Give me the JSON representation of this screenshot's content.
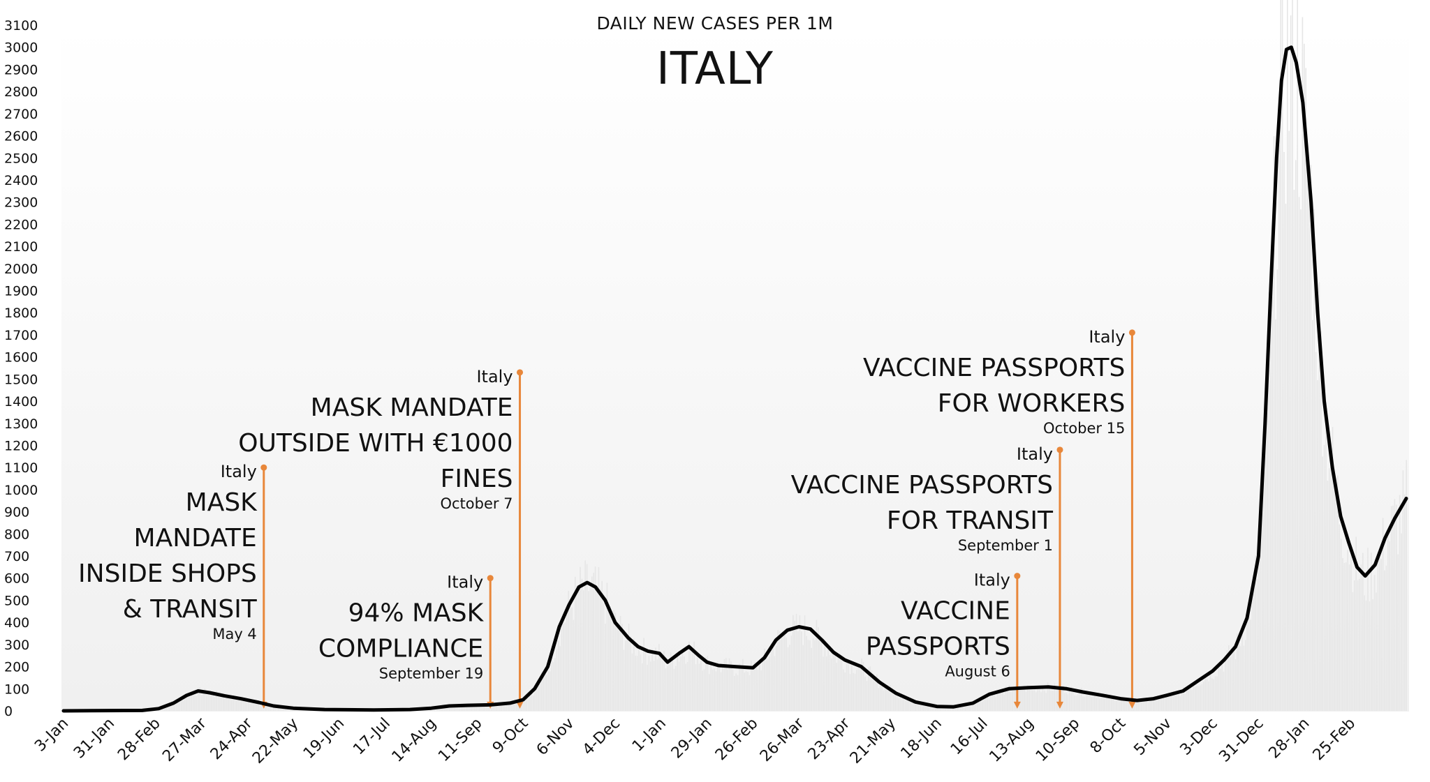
{
  "chart_data": {
    "type": "line",
    "title": "ITALY",
    "subtitle": "DAILY NEW CASES PER 1M",
    "xlabel": "",
    "ylabel": "",
    "ylim": [
      0,
      3100
    ],
    "yticks": [
      0,
      100,
      200,
      300,
      400,
      500,
      600,
      700,
      800,
      900,
      1000,
      1100,
      1200,
      1300,
      1400,
      1500,
      1600,
      1700,
      1800,
      1900,
      2000,
      2100,
      2200,
      2300,
      2400,
      2500,
      2600,
      2700,
      2800,
      2900,
      3000,
      3100
    ],
    "x_start": "2020-01-03",
    "x_end": "2022-03-31",
    "xticks": [
      {
        "date": "2020-01-03",
        "label": "3-Jan"
      },
      {
        "date": "2020-01-31",
        "label": "31-Jan"
      },
      {
        "date": "2020-02-28",
        "label": "28-Feb"
      },
      {
        "date": "2020-03-27",
        "label": "27-Mar"
      },
      {
        "date": "2020-04-24",
        "label": "24-Apr"
      },
      {
        "date": "2020-05-22",
        "label": "22-May"
      },
      {
        "date": "2020-06-19",
        "label": "19-Jun"
      },
      {
        "date": "2020-07-17",
        "label": "17-Jul"
      },
      {
        "date": "2020-08-14",
        "label": "14-Aug"
      },
      {
        "date": "2020-09-11",
        "label": "11-Sep"
      },
      {
        "date": "2020-10-09",
        "label": "9-Oct"
      },
      {
        "date": "2020-11-06",
        "label": "6-Nov"
      },
      {
        "date": "2020-12-04",
        "label": "4-Dec"
      },
      {
        "date": "2021-01-01",
        "label": "1-Jan"
      },
      {
        "date": "2021-01-29",
        "label": "29-Jan"
      },
      {
        "date": "2021-02-26",
        "label": "26-Feb"
      },
      {
        "date": "2021-03-26",
        "label": "26-Mar"
      },
      {
        "date": "2021-04-23",
        "label": "23-Apr"
      },
      {
        "date": "2021-05-21",
        "label": "21-May"
      },
      {
        "date": "2021-06-18",
        "label": "18-Jun"
      },
      {
        "date": "2021-07-16",
        "label": "16-Jul"
      },
      {
        "date": "2021-08-13",
        "label": "13-Aug"
      },
      {
        "date": "2021-09-10",
        "label": "10-Sep"
      },
      {
        "date": "2021-10-08",
        "label": "8-Oct"
      },
      {
        "date": "2021-11-05",
        "label": "5-Nov"
      },
      {
        "date": "2021-12-03",
        "label": "3-Dec"
      },
      {
        "date": "2021-12-31",
        "label": "31-Dec"
      },
      {
        "date": "2022-01-28",
        "label": "28-Jan"
      },
      {
        "date": "2022-02-25",
        "label": "25-Feb"
      }
    ],
    "grid": false,
    "legend": "none",
    "series": [
      {
        "color": "#000000",
        "points": [
          [
            "2020-01-03",
            0
          ],
          [
            "2020-02-20",
            2
          ],
          [
            "2020-03-01",
            10
          ],
          [
            "2020-03-10",
            35
          ],
          [
            "2020-03-18",
            70
          ],
          [
            "2020-03-25",
            90
          ],
          [
            "2020-04-01",
            82
          ],
          [
            "2020-04-10",
            68
          ],
          [
            "2020-04-20",
            55
          ],
          [
            "2020-05-01",
            38
          ],
          [
            "2020-05-10",
            22
          ],
          [
            "2020-05-22",
            12
          ],
          [
            "2020-06-10",
            6
          ],
          [
            "2020-07-10",
            4
          ],
          [
            "2020-08-01",
            6
          ],
          [
            "2020-08-14",
            12
          ],
          [
            "2020-08-25",
            22
          ],
          [
            "2020-09-05",
            25
          ],
          [
            "2020-09-19",
            27
          ],
          [
            "2020-10-01",
            35
          ],
          [
            "2020-10-09",
            50
          ],
          [
            "2020-10-16",
            100
          ],
          [
            "2020-10-24",
            200
          ],
          [
            "2020-10-31",
            380
          ],
          [
            "2020-11-06",
            480
          ],
          [
            "2020-11-12",
            560
          ],
          [
            "2020-11-17",
            580
          ],
          [
            "2020-11-22",
            560
          ],
          [
            "2020-11-28",
            500
          ],
          [
            "2020-12-04",
            400
          ],
          [
            "2020-12-12",
            330
          ],
          [
            "2020-12-18",
            290
          ],
          [
            "2020-12-24",
            270
          ],
          [
            "2020-12-31",
            260
          ],
          [
            "2021-01-05",
            220
          ],
          [
            "2021-01-12",
            260
          ],
          [
            "2021-01-18",
            290
          ],
          [
            "2021-01-24",
            250
          ],
          [
            "2021-01-29",
            220
          ],
          [
            "2021-02-05",
            205
          ],
          [
            "2021-02-15",
            200
          ],
          [
            "2021-02-26",
            195
          ],
          [
            "2021-03-05",
            240
          ],
          [
            "2021-03-12",
            320
          ],
          [
            "2021-03-19",
            365
          ],
          [
            "2021-03-26",
            380
          ],
          [
            "2021-04-02",
            370
          ],
          [
            "2021-04-09",
            320
          ],
          [
            "2021-04-16",
            265
          ],
          [
            "2021-04-23",
            230
          ],
          [
            "2021-05-03",
            200
          ],
          [
            "2021-05-14",
            130
          ],
          [
            "2021-05-24",
            80
          ],
          [
            "2021-06-05",
            40
          ],
          [
            "2021-06-18",
            20
          ],
          [
            "2021-06-28",
            18
          ],
          [
            "2021-07-10",
            35
          ],
          [
            "2021-07-20",
            75
          ],
          [
            "2021-08-01",
            100
          ],
          [
            "2021-08-13",
            105
          ],
          [
            "2021-08-25",
            108
          ],
          [
            "2021-09-05",
            100
          ],
          [
            "2021-09-15",
            85
          ],
          [
            "2021-09-27",
            70
          ],
          [
            "2021-10-08",
            55
          ],
          [
            "2021-10-18",
            47
          ],
          [
            "2021-10-28",
            55
          ],
          [
            "2021-11-05",
            70
          ],
          [
            "2021-11-15",
            90
          ],
          [
            "2021-11-25",
            140
          ],
          [
            "2021-12-03",
            180
          ],
          [
            "2021-12-10",
            230
          ],
          [
            "2021-12-17",
            290
          ],
          [
            "2021-12-24",
            420
          ],
          [
            "2021-12-31",
            700
          ],
          [
            "2022-01-04",
            1300
          ],
          [
            "2022-01-08",
            2000
          ],
          [
            "2022-01-11",
            2500
          ],
          [
            "2022-01-14",
            2850
          ],
          [
            "2022-01-17",
            2990
          ],
          [
            "2022-01-20",
            3000
          ],
          [
            "2022-01-23",
            2930
          ],
          [
            "2022-01-27",
            2750
          ],
          [
            "2022-02-01",
            2300
          ],
          [
            "2022-02-05",
            1800
          ],
          [
            "2022-02-09",
            1400
          ],
          [
            "2022-02-14",
            1100
          ],
          [
            "2022-02-19",
            880
          ],
          [
            "2022-02-24",
            760
          ],
          [
            "2022-03-01",
            650
          ],
          [
            "2022-03-06",
            610
          ],
          [
            "2022-03-12",
            660
          ],
          [
            "2022-03-18",
            780
          ],
          [
            "2022-03-24",
            870
          ],
          [
            "2022-03-31",
            960
          ]
        ]
      }
    ],
    "annotations": [
      {
        "place": "Italy",
        "lines": [
          "MASK",
          "MANDATE",
          "INSIDE SHOPS",
          "& TRANSIT"
        ],
        "date_label": "May 4",
        "date": "2020-05-04",
        "marker_top": 1100
      },
      {
        "place": "Italy",
        "lines": [
          "94% MASK",
          "COMPLIANCE"
        ],
        "date_label": "September 19",
        "date": "2020-09-19",
        "marker_top": 600
      },
      {
        "place": "Italy",
        "lines": [
          "MASK MANDATE",
          "OUTSIDE WITH €1000",
          "FINES"
        ],
        "date_label": "October 7",
        "date": "2020-10-07",
        "marker_top": 1530
      },
      {
        "place": "Italy",
        "lines": [
          "VACCINE",
          "PASSPORTS"
        ],
        "date_label": "August 6",
        "date": "2021-08-06",
        "marker_top": 610
      },
      {
        "place": "Italy",
        "lines": [
          "VACCINE PASSPORTS",
          "FOR TRANSIT"
        ],
        "date_label": "September 1",
        "date": "2021-09-01",
        "marker_top": 1180
      },
      {
        "place": "Italy",
        "lines": [
          "VACCINE PASSPORTS",
          "FOR WORKERS"
        ],
        "date_label": "October 15",
        "date": "2021-10-15",
        "marker_top": 1710
      }
    ],
    "colors": {
      "line": "#000000",
      "annotation": "#e8873a",
      "bars": "#e6e6e6"
    }
  }
}
